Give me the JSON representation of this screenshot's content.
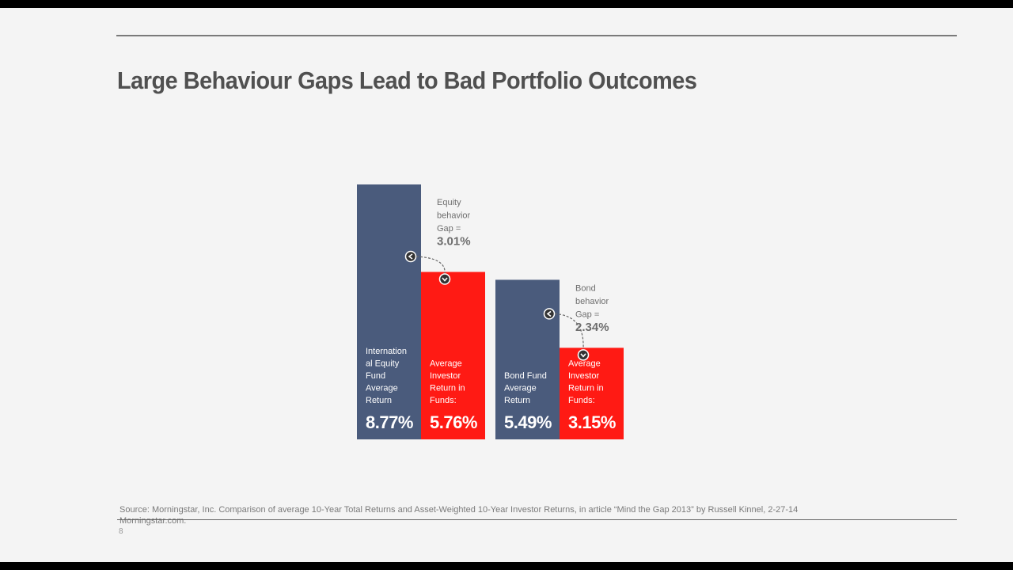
{
  "slide": {
    "title": "Large Behaviour Gaps Lead to Bad Portfolio Outcomes",
    "source_line1": "Source: Morningstar, Inc. Comparison of  average 10-Year Total Returns and Asset-Weighted 10-Year Investor Returns, in article “Mind the Gap 2013” by Russell Kinnel, 2-27-14",
    "source_line2": "Morningstar.com.",
    "page_number": "8"
  },
  "chart_data": {
    "type": "bar",
    "ylim": [
      0,
      8.77
    ],
    "colors": {
      "fund": "#4a5b7c",
      "investor": "#ff1a14"
    },
    "groups": [
      {
        "bars": [
          {
            "series": "fund",
            "value": 8.77,
            "label_lines": [
              "Internation",
              "al Equity",
              "Fund",
              "Average",
              "Return"
            ],
            "value_label": "8.77%"
          },
          {
            "series": "investor",
            "value": 5.76,
            "label_lines": [
              "Average",
              "Investor",
              "Return in",
              "Funds:"
            ],
            "value_label": "5.76%"
          }
        ],
        "gap": {
          "label_lines": [
            "Equity",
            "behavior",
            "Gap ="
          ],
          "value_label": "3.01%"
        }
      },
      {
        "bars": [
          {
            "series": "fund",
            "value": 5.49,
            "label_lines": [
              "Bond Fund",
              "Average",
              "Return"
            ],
            "value_label": "5.49%"
          },
          {
            "series": "investor",
            "value": 3.15,
            "label_lines": [
              "Average",
              "Investor",
              "Return in",
              "Funds:"
            ],
            "value_label": "3.15%"
          }
        ],
        "gap": {
          "label_lines": [
            "Bond",
            "behavior",
            "Gap ="
          ],
          "value_label": "2.34%"
        }
      }
    ]
  }
}
